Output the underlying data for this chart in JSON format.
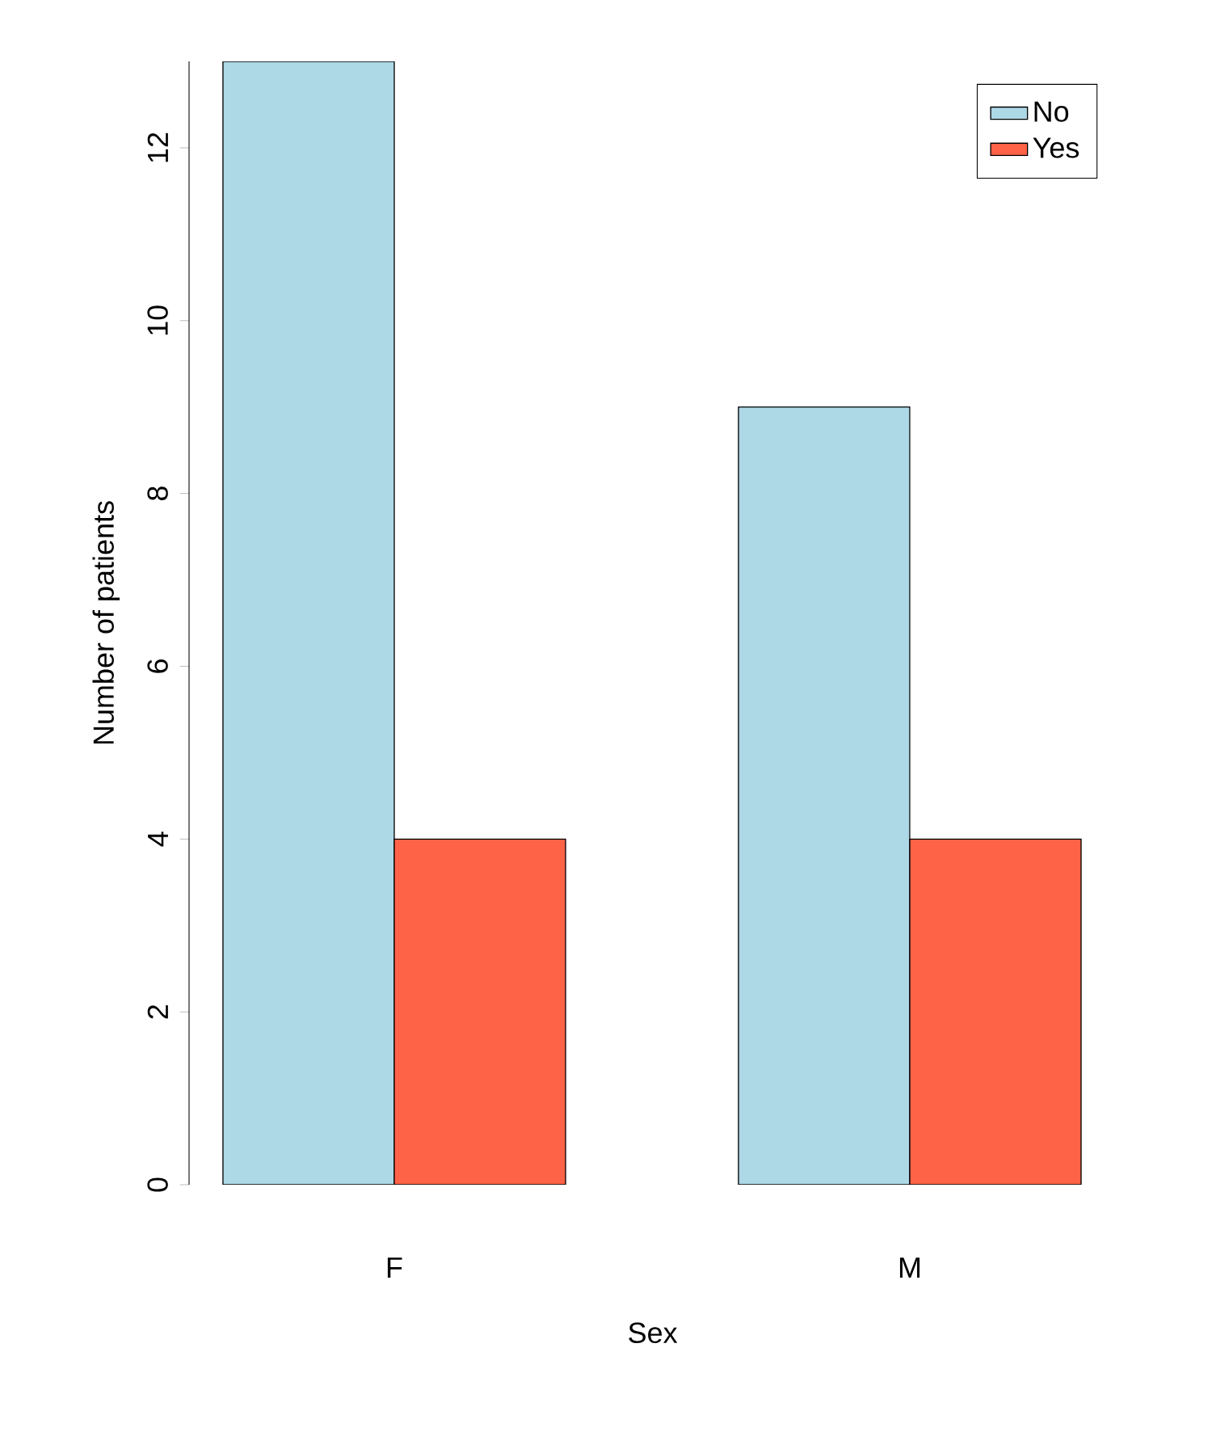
{
  "chart_data": {
    "type": "bar",
    "xlabel": "Sex",
    "ylabel": "Number of patients",
    "categories": [
      "F",
      "M"
    ],
    "series": [
      {
        "name": "No",
        "color": "#add8e6",
        "values": [
          13,
          9
        ]
      },
      {
        "name": "Yes",
        "color": "#ff6347",
        "values": [
          4,
          4
        ]
      }
    ],
    "ylim": [
      0,
      13
    ],
    "yticks": [
      0,
      2,
      4,
      6,
      8,
      10,
      12
    ],
    "legend": "top right"
  }
}
